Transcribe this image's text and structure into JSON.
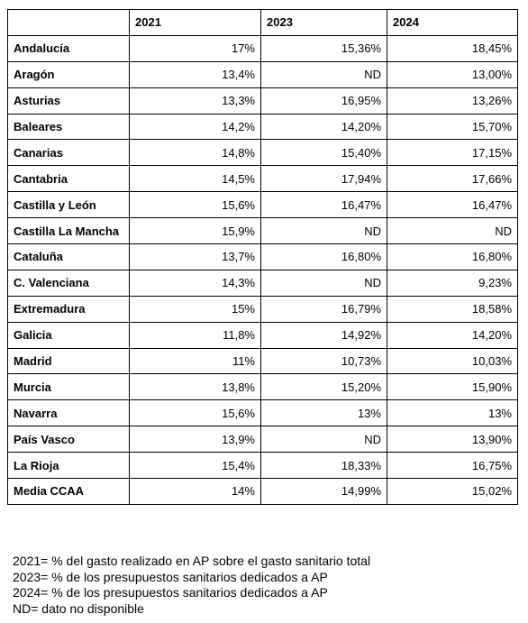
{
  "table": {
    "headers": [
      "",
      "2021",
      "2023",
      "2024"
    ],
    "rows": [
      [
        "Andalucía",
        "17%",
        "15,36%",
        "18,45%"
      ],
      [
        "Aragón",
        "13,4%",
        "ND",
        "13,00%"
      ],
      [
        "Asturias",
        "13,3%",
        "16,95%",
        "13,26%"
      ],
      [
        "Baleares",
        "14,2%",
        "14,20%",
        "15,70%"
      ],
      [
        "Canarias",
        "14,8%",
        "15,40%",
        "17,15%"
      ],
      [
        "Cantabria",
        "14,5%",
        "17,94%",
        "17,66%"
      ],
      [
        "Castilla y León",
        "15,6%",
        "16,47%",
        "16,47%"
      ],
      [
        "Castilla La Mancha",
        "15,9%",
        "ND",
        "ND"
      ],
      [
        "Cataluña",
        "13,7%",
        "16,80%",
        "16,80%"
      ],
      [
        "C. Valenciana",
        "14,3%",
        "ND",
        "9,23%"
      ],
      [
        "Extremadura",
        "15%",
        "16,79%",
        "18,58%"
      ],
      [
        "Galicia",
        "11,8%",
        "14,92%",
        "14,20%"
      ],
      [
        "Madrid",
        "11%",
        "10,73%",
        "10,03%"
      ],
      [
        "Murcia",
        "13,8%",
        "15,20%",
        "15,90%"
      ],
      [
        "Navarra",
        "15,6%",
        "13%",
        "13%"
      ],
      [
        "País Vasco",
        "13,9%",
        "ND",
        "13,90%"
      ],
      [
        "La Rioja",
        "15,4%",
        "18,33%",
        "16,75%"
      ],
      [
        "Media CCAA",
        "14%",
        "14,99%",
        "15,02%"
      ]
    ]
  },
  "notes": [
    "2021= % del gasto realizado en AP sobre el gasto sanitario total",
    "2023= % de los presupuestos sanitarios dedicados a AP",
    "2024= % de los presupuestos sanitarios dedicados a AP",
    "ND= dato no disponible"
  ]
}
